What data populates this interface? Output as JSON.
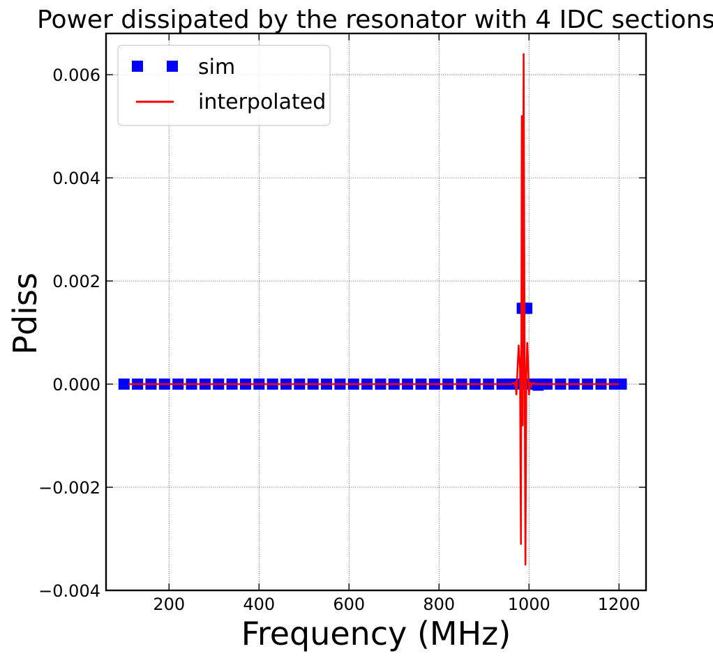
{
  "chart_data": {
    "type": "line",
    "title": "Power dissipated by the resonator with 4 IDC sections",
    "xlabel": "Frequency (MHz)",
    "ylabel": "Pdiss",
    "xlim": [
      60,
      1260
    ],
    "ylim": [
      -0.004,
      0.0068
    ],
    "x_ticks": [
      200,
      400,
      600,
      800,
      1000,
      1200
    ],
    "x_tick_labels": [
      "200",
      "400",
      "600",
      "800",
      "1000",
      "1200"
    ],
    "y_ticks": [
      -0.004,
      -0.002,
      0.0,
      0.002,
      0.004,
      0.006
    ],
    "y_tick_labels": [
      "−0.004",
      "−0.002",
      "0.000",
      "0.002",
      "0.004",
      "0.006"
    ],
    "grid": true,
    "legend_position": "top-left",
    "series": [
      {
        "name": "sim",
        "style": "markers",
        "marker": "square",
        "color": "#0000ff",
        "x": [
          100,
          130,
          160,
          190,
          220,
          250,
          280,
          310,
          340,
          370,
          400,
          430,
          460,
          490,
          520,
          550,
          580,
          610,
          640,
          670,
          700,
          730,
          760,
          790,
          820,
          850,
          880,
          910,
          940,
          960,
          970,
          980,
          985,
          990,
          995,
          1000,
          1010,
          1020,
          1030,
          1040,
          1070,
          1100,
          1130,
          1160,
          1190,
          1205
        ],
        "y": [
          0,
          0,
          0,
          0,
          0,
          0,
          0,
          0,
          0,
          0,
          0,
          0,
          0,
          0,
          0,
          0,
          0,
          0,
          0,
          0,
          0,
          0,
          0,
          0,
          0,
          0,
          0,
          0,
          0,
          0,
          0,
          0,
          0.00147,
          0.00147,
          0.00147,
          0,
          0,
          -2e-05,
          0,
          0,
          0,
          0,
          0,
          0,
          0,
          0
        ]
      },
      {
        "name": "interpolated",
        "style": "line",
        "color": "#ff0000",
        "x": [
          110,
          960,
          965,
          968,
          970,
          972,
          975,
          977,
          980,
          982,
          984,
          986,
          988,
          990,
          992,
          994,
          996,
          998,
          1000,
          1002,
          1004,
          1006,
          1008,
          1010,
          1013,
          1016,
          1020,
          1025,
          1200
        ],
        "y": [
          0,
          0,
          2e-05,
          -2e-05,
          4e-05,
          -0.0002,
          0.0004,
          0.00075,
          0.0003,
          -0.0031,
          0.0052,
          -0.0008,
          0.0064,
          0.0009,
          -0.0035,
          0.0002,
          0.0008,
          0.0004,
          -0.0002,
          3e-05,
          -5e-05,
          2e-05,
          0,
          2e-05,
          0,
          1e-05,
          0,
          0,
          0
        ]
      }
    ]
  }
}
